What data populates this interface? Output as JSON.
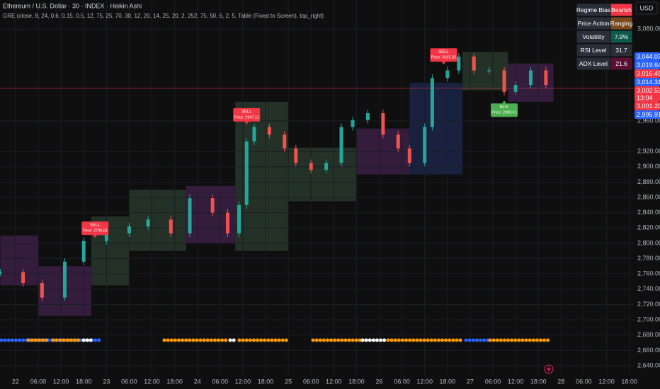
{
  "chart_data": {
    "type": "candlestick",
    "title": "Ethereum / U.S. Dollar · 30 · INDEX · Heikin Ashi",
    "subtitle": "GRE (close, 8, 24, 0.6, 0.15, 0.5, 12, 75, 25, 70, 30, 12, 20, 14, 25, 20, 2, 252, 75, 50, 6, 2, 5, Table (Fixed to Screen), top_right)",
    "currency": "USD",
    "x": [
      -4,
      2,
      7,
      13,
      18,
      24,
      30,
      35,
      41,
      46,
      52,
      56,
      59,
      61,
      63,
      67,
      71,
      74,
      78,
      82,
      86,
      89,
      93,
      97,
      101,
      104,
      108,
      110,
      114,
      117,
      121,
      125,
      129,
      132,
      136,
      140
    ],
    "values": [
      2762,
      2748,
      2729,
      2776,
      2803,
      2813,
      2822,
      2831,
      2813,
      2859,
      2840,
      2813,
      2850,
      2933,
      2952,
      2942,
      2924,
      2905,
      2896,
      2905,
      2952,
      2961,
      2970,
      2942,
      2924,
      2905,
      2952,
      3016,
      3026,
      3044,
      3026,
      3026,
      2998,
      3007,
      3026,
      3007
    ],
    "up_color": "#26a69a",
    "down_color": "#ef5350",
    "xlim": [
      -4.1,
      163.2
    ],
    "ylim": [
      2628,
      3118
    ],
    "xticks": [
      {
        "value": 0,
        "label": "22"
      },
      {
        "value": 6,
        "label": "06:00"
      },
      {
        "value": 12,
        "label": "12:00"
      },
      {
        "value": 18,
        "label": "18:00"
      },
      {
        "value": 24,
        "label": "23"
      },
      {
        "value": 30,
        "label": "06:00"
      },
      {
        "value": 36,
        "label": "12:00"
      },
      {
        "value": 42,
        "label": "18:00"
      },
      {
        "value": 48,
        "label": "24"
      },
      {
        "value": 54,
        "label": "06:00"
      },
      {
        "value": 60,
        "label": "12:00"
      },
      {
        "value": 66,
        "label": "18:00"
      },
      {
        "value": 72,
        "label": "25"
      },
      {
        "value": 78,
        "label": "06:00"
      },
      {
        "value": 84,
        "label": "12:00"
      },
      {
        "value": 90,
        "label": "18:00"
      },
      {
        "value": 96,
        "label": "26"
      },
      {
        "value": 102,
        "label": "06:00"
      },
      {
        "value": 108,
        "label": "12:00"
      },
      {
        "value": 114,
        "label": "18:00"
      },
      {
        "value": 120,
        "label": "27"
      },
      {
        "value": 126,
        "label": "06:00"
      },
      {
        "value": 132,
        "label": "12:00"
      },
      {
        "value": 138,
        "label": "18:00"
      },
      {
        "value": 144,
        "label": "28"
      },
      {
        "value": 150,
        "label": "06:00"
      },
      {
        "value": 156,
        "label": "12:00"
      },
      {
        "value": 162,
        "label": "18:00"
      }
    ],
    "yticks": [
      {
        "value": 3080,
        "label": "3,080.00"
      },
      {
        "value": 2960,
        "label": "2,960.00"
      },
      {
        "value": 2920,
        "label": "2,920.00"
      },
      {
        "value": 2900,
        "label": "2,900.00"
      },
      {
        "value": 2880,
        "label": "2,880.00"
      },
      {
        "value": 2860,
        "label": "2,860.00"
      },
      {
        "value": 2840,
        "label": "2,840.00"
      },
      {
        "value": 2820,
        "label": "2,820.00"
      },
      {
        "value": 2800,
        "label": "2,800.00"
      },
      {
        "value": 2780,
        "label": "2,780.00"
      },
      {
        "value": 2760,
        "label": "2,760.00"
      },
      {
        "value": 2740,
        "label": "2,740.00"
      },
      {
        "value": 2720,
        "label": "2,720.00"
      },
      {
        "value": 2700,
        "label": "2,700.00"
      },
      {
        "value": 2680,
        "label": "2,680.00"
      },
      {
        "value": 2660,
        "label": "2,660.00"
      },
      {
        "value": 2640,
        "label": "2,640.00"
      }
    ],
    "grid": true,
    "current_price": 3002.53,
    "price_tags": [
      {
        "value": 3044.03,
        "label": "3,044.03",
        "color": "#2962ff"
      },
      {
        "value": 3019.64,
        "label": "3,019.64",
        "color": "#2962ff"
      },
      {
        "value": 3016.45,
        "label": "3,016.45",
        "color": "#f23645"
      },
      {
        "value": 3014.31,
        "label": "3,014.31",
        "color": "#2962ff"
      },
      {
        "value": 3002.53,
        "label": "3,002.53",
        "color": "#f23645",
        "countdown": "13:04"
      },
      {
        "value": 3001.2,
        "label": "3,001.20",
        "color": "#f23645"
      },
      {
        "value": 2995.91,
        "label": "2,995.91",
        "color": "#2962ff"
      }
    ],
    "regime_bands": [
      {
        "x": [
          -4,
          6
        ],
        "range": [
          2745,
          2810
        ],
        "color": "#3b1f45"
      },
      {
        "x": [
          6,
          20
        ],
        "range": [
          2705,
          2770
        ],
        "color": "#3b1f45"
      },
      {
        "x": [
          20,
          30
        ],
        "range": [
          2745,
          2835
        ],
        "color": "#28372a"
      },
      {
        "x": [
          30,
          45
        ],
        "range": [
          2790,
          2870
        ],
        "color": "#28372a"
      },
      {
        "x": [
          45,
          58
        ],
        "range": [
          2800,
          2875
        ],
        "color": "#3b1f45"
      },
      {
        "x": [
          58,
          72
        ],
        "range": [
          2790,
          2985
        ],
        "color": "#28372a"
      },
      {
        "x": [
          72,
          90
        ],
        "range": [
          2855,
          2925
        ],
        "color": "#28372a"
      },
      {
        "x": [
          90,
          104
        ],
        "range": [
          2890,
          2950
        ],
        "color": "#3b1f45"
      },
      {
        "x": [
          104,
          118
        ],
        "range": [
          2890,
          3010
        ],
        "color": "#1c2446"
      },
      {
        "x": [
          118,
          130
        ],
        "range": [
          3000,
          3050
        ],
        "color": "#28372a"
      },
      {
        "x": [
          130,
          142
        ],
        "range": [
          2985,
          3035
        ],
        "color": "#3b1f45"
      }
    ],
    "signals": [
      {
        "x": 21,
        "price": 2798.81,
        "side": "SELL",
        "label": "Price: 2798.81",
        "color": "#f23645"
      },
      {
        "x": 61,
        "price": 2947.11,
        "side": "SELL",
        "label": "Price: 2947.11",
        "color": "#f23645"
      },
      {
        "x": 113,
        "price": 3025.32,
        "side": "SELL",
        "label": "Price: 3025.32",
        "color": "#f23645"
      },
      {
        "x": 129,
        "price": 2999.41,
        "side": "BUY",
        "label": "Price: 2999.41",
        "color": "#4caf50"
      }
    ],
    "table": [
      {
        "name": "Regime Bias",
        "value": "Bearish",
        "color": "#f23645"
      },
      {
        "name": "Price Action",
        "value": "Ranging",
        "color": "#7a4a1e"
      },
      {
        "name": "Volatility",
        "value": "7.9%",
        "color": "#0b5a4c"
      },
      {
        "name": "RSI Level",
        "value": 31.7,
        "color": "#2a2e39"
      },
      {
        "name": "ADX Level",
        "value": 21.6,
        "color": "#5a1035"
      }
    ]
  }
}
